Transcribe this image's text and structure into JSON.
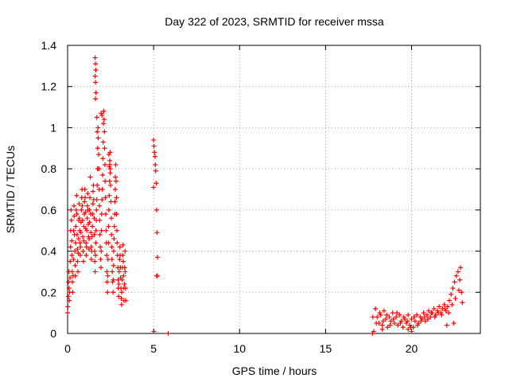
{
  "chart_data": {
    "type": "scatter",
    "title": "Day 322 of 2023, SRMTID for receiver mssa",
    "xlabel": "GPS time / hours",
    "ylabel": "SRMTID / TECUs",
    "xlim": [
      0,
      24
    ],
    "ylim": [
      0,
      1.4
    ],
    "xticks": [
      0,
      5,
      10,
      15,
      20
    ],
    "yticks": [
      0,
      0.2,
      0.4,
      0.6,
      0.8,
      1,
      1.2,
      1.4
    ],
    "xtick_labels": [
      "0",
      "5",
      "10",
      "15",
      "20"
    ],
    "ytick_labels": [
      "0",
      "0.2",
      "0.4",
      "0.6",
      "0.8",
      "1",
      "1.2",
      "1.4"
    ],
    "grid": true,
    "marker": "+",
    "color": "#ff0000",
    "series": [
      {
        "name": "mssa",
        "points": [
          [
            0.0,
            0.1
          ],
          [
            0.02,
            0.13
          ],
          [
            0.04,
            0.18
          ],
          [
            0.05,
            0.25
          ],
          [
            0.07,
            0.3
          ],
          [
            0.08,
            0.22
          ],
          [
            0.1,
            0.16
          ],
          [
            0.12,
            0.2
          ],
          [
            0.14,
            0.27
          ],
          [
            0.15,
            0.35
          ],
          [
            0.17,
            0.42
          ],
          [
            0.18,
            0.5
          ],
          [
            0.2,
            0.6
          ],
          [
            0.22,
            0.55
          ],
          [
            0.24,
            0.45
          ],
          [
            0.25,
            0.38
          ],
          [
            0.27,
            0.3
          ],
          [
            0.28,
            0.25
          ],
          [
            0.3,
            0.2
          ],
          [
            0.32,
            0.28
          ],
          [
            0.34,
            0.36
          ],
          [
            0.35,
            0.5
          ],
          [
            0.37,
            0.62
          ],
          [
            0.38,
            0.57
          ],
          [
            0.4,
            0.48
          ],
          [
            0.42,
            0.4
          ],
          [
            0.44,
            0.33
          ],
          [
            0.45,
            0.28
          ],
          [
            0.47,
            0.44
          ],
          [
            0.48,
            0.52
          ],
          [
            0.5,
            0.6
          ],
          [
            0.52,
            0.67
          ],
          [
            0.54,
            0.58
          ],
          [
            0.55,
            0.48
          ],
          [
            0.57,
            0.41
          ],
          [
            0.58,
            0.35
          ],
          [
            0.6,
            0.3
          ],
          [
            0.62,
            0.39
          ],
          [
            0.64,
            0.46
          ],
          [
            0.65,
            0.55
          ],
          [
            0.67,
            0.63
          ],
          [
            0.68,
            0.56
          ],
          [
            0.7,
            0.5
          ],
          [
            0.72,
            0.44
          ],
          [
            0.74,
            0.38
          ],
          [
            0.75,
            0.42
          ],
          [
            0.77,
            0.49
          ],
          [
            0.78,
            0.54
          ],
          [
            0.8,
            0.6
          ],
          [
            0.82,
            0.66
          ],
          [
            0.84,
            0.7
          ],
          [
            0.85,
            0.62
          ],
          [
            0.87,
            0.55
          ],
          [
            0.88,
            0.47
          ],
          [
            0.9,
            0.4
          ],
          [
            0.92,
            0.35
          ],
          [
            0.94,
            0.45
          ],
          [
            0.95,
            0.52
          ],
          [
            0.97,
            0.58
          ],
          [
            0.98,
            0.64
          ],
          [
            1.0,
            0.7
          ],
          [
            1.02,
            0.66
          ],
          [
            1.04,
            0.59
          ],
          [
            1.05,
            0.51
          ],
          [
            1.07,
            0.44
          ],
          [
            1.08,
            0.38
          ],
          [
            1.1,
            0.42
          ],
          [
            1.12,
            0.5
          ],
          [
            1.14,
            0.56
          ],
          [
            1.15,
            0.62
          ],
          [
            1.17,
            0.68
          ],
          [
            1.18,
            0.6
          ],
          [
            1.2,
            0.53
          ],
          [
            1.22,
            0.47
          ],
          [
            1.24,
            0.41
          ],
          [
            1.25,
            0.46
          ],
          [
            1.27,
            0.54
          ],
          [
            1.28,
            0.6
          ],
          [
            1.3,
            0.66
          ],
          [
            1.32,
            0.76
          ],
          [
            1.34,
            0.58
          ],
          [
            1.35,
            0.49
          ],
          [
            1.37,
            0.42
          ],
          [
            1.38,
            0.36
          ],
          [
            1.4,
            0.4
          ],
          [
            1.42,
            0.47
          ],
          [
            1.44,
            0.52
          ],
          [
            1.45,
            0.58
          ],
          [
            1.47,
            0.63
          ],
          [
            1.48,
            0.69
          ],
          [
            1.5,
            0.72
          ],
          [
            1.52,
            0.65
          ],
          [
            1.54,
            0.56
          ],
          [
            1.55,
            0.48
          ],
          [
            1.57,
            0.4
          ],
          [
            1.58,
            0.35
          ],
          [
            1.6,
            0.3
          ],
          [
            1.62,
            0.38
          ],
          [
            1.64,
            0.44
          ],
          [
            1.65,
            0.5
          ],
          [
            1.67,
            0.55
          ],
          [
            1.68,
            0.6
          ],
          [
            1.7,
            0.65
          ],
          [
            1.72,
            0.72
          ],
          [
            1.74,
            0.8
          ],
          [
            1.75,
            0.9
          ],
          [
            1.77,
            1.0
          ],
          [
            1.78,
            0.95
          ],
          [
            1.8,
            0.87
          ],
          [
            1.82,
            0.8
          ],
          [
            1.84,
            0.7
          ],
          [
            1.85,
            0.62
          ],
          [
            1.87,
            0.55
          ],
          [
            1.88,
            0.48
          ],
          [
            1.9,
            0.42
          ],
          [
            1.92,
            0.36
          ],
          [
            1.94,
            0.32
          ],
          [
            1.95,
            0.4
          ],
          [
            1.97,
            0.5
          ],
          [
            1.98,
            0.58
          ],
          [
            2.0,
            0.65
          ],
          [
            2.02,
            0.7
          ],
          [
            2.04,
            0.77
          ],
          [
            2.05,
            0.85
          ],
          [
            2.07,
            0.93
          ],
          [
            2.08,
            1.02
          ],
          [
            2.1,
            1.08
          ],
          [
            2.12,
            1.04
          ],
          [
            2.14,
            0.98
          ],
          [
            2.15,
            0.9
          ],
          [
            2.17,
            0.82
          ],
          [
            2.18,
            0.74
          ],
          [
            2.2,
            0.66
          ],
          [
            2.22,
            0.58
          ],
          [
            2.24,
            0.5
          ],
          [
            2.25,
            0.44
          ],
          [
            2.27,
            0.38
          ],
          [
            2.28,
            0.3
          ],
          [
            2.3,
            0.25
          ],
          [
            2.32,
            0.2
          ],
          [
            2.34,
            0.28
          ],
          [
            2.35,
            0.36
          ],
          [
            2.37,
            0.44
          ],
          [
            2.38,
            0.52
          ],
          [
            2.4,
            0.6
          ],
          [
            2.42,
            0.67
          ],
          [
            2.44,
            0.74
          ],
          [
            2.45,
            0.82
          ],
          [
            2.47,
            0.88
          ],
          [
            2.48,
            0.8
          ],
          [
            2.5,
            0.72
          ],
          [
            2.52,
            0.64
          ],
          [
            2.54,
            0.56
          ],
          [
            2.55,
            0.48
          ],
          [
            2.57,
            0.42
          ],
          [
            2.58,
            0.36
          ],
          [
            2.6,
            0.3
          ],
          [
            2.62,
            0.25
          ],
          [
            2.64,
            0.2
          ],
          [
            2.65,
            0.26
          ],
          [
            2.67,
            0.33
          ],
          [
            2.68,
            0.4
          ],
          [
            2.7,
            0.46
          ],
          [
            2.72,
            0.52
          ],
          [
            2.74,
            0.58
          ],
          [
            2.75,
            0.64
          ],
          [
            2.77,
            0.7
          ],
          [
            2.78,
            0.76
          ],
          [
            2.8,
            0.82
          ],
          [
            2.82,
            0.74
          ],
          [
            2.84,
            0.66
          ],
          [
            2.85,
            0.58
          ],
          [
            2.87,
            0.5
          ],
          [
            2.88,
            0.44
          ],
          [
            2.9,
            0.38
          ],
          [
            2.92,
            0.32
          ],
          [
            2.94,
            0.26
          ],
          [
            2.95,
            0.22
          ],
          [
            2.97,
            0.18
          ],
          [
            2.98,
            0.24
          ],
          [
            3.0,
            0.3
          ],
          [
            3.02,
            0.36
          ],
          [
            3.04,
            0.42
          ],
          [
            3.05,
            0.38
          ],
          [
            3.07,
            0.32
          ],
          [
            3.08,
            0.27
          ],
          [
            3.1,
            0.22
          ],
          [
            3.12,
            0.17
          ],
          [
            3.14,
            0.14
          ],
          [
            3.15,
            0.2
          ],
          [
            3.17,
            0.26
          ],
          [
            3.18,
            0.32
          ],
          [
            3.2,
            0.38
          ],
          [
            3.22,
            0.43
          ],
          [
            3.24,
            0.35
          ],
          [
            3.25,
            0.28
          ],
          [
            3.27,
            0.22
          ],
          [
            3.28,
            0.16
          ],
          [
            3.3,
            0.24
          ],
          [
            3.32,
            0.32
          ],
          [
            3.34,
            0.4
          ],
          [
            3.35,
            0.3
          ],
          [
            3.37,
            0.22
          ],
          [
            3.38,
            0.16
          ],
          [
            1.6,
            1.34
          ],
          [
            1.62,
            1.31
          ],
          [
            1.64,
            1.28
          ],
          [
            1.6,
            1.25
          ],
          [
            1.62,
            1.22
          ],
          [
            1.65,
            1.17
          ],
          [
            1.62,
            1.14
          ],
          [
            1.7,
            1.05
          ],
          [
            1.72,
            0.98
          ],
          [
            1.95,
            1.07
          ],
          [
            2.0,
            1.06
          ],
          [
            2.4,
            0.87
          ],
          [
            2.45,
            0.84
          ],
          [
            2.42,
            0.81
          ],
          [
            2.48,
            0.78
          ],
          [
            5.0,
            0.94
          ],
          [
            5.02,
            0.91
          ],
          [
            5.05,
            0.88
          ],
          [
            5.08,
            0.86
          ],
          [
            5.1,
            0.82
          ],
          [
            5.12,
            0.79
          ],
          [
            5.0,
            0.71
          ],
          [
            5.15,
            0.73
          ],
          [
            5.18,
            0.6
          ],
          [
            5.2,
            0.49
          ],
          [
            5.22,
            0.37
          ],
          [
            5.18,
            0.28
          ],
          [
            5.22,
            0.28
          ],
          [
            5.02,
            0.01
          ],
          [
            5.85,
            0.0
          ],
          [
            17.72,
            0.0
          ],
          [
            17.8,
            0.01
          ],
          [
            17.9,
            0.12
          ],
          [
            18.0,
            0.08
          ],
          [
            18.1,
            0.05
          ],
          [
            18.2,
            0.09
          ],
          [
            18.3,
            0.04
          ],
          [
            18.4,
            0.11
          ],
          [
            18.5,
            0.07
          ],
          [
            18.6,
            0.03
          ],
          [
            18.7,
            0.08
          ],
          [
            18.8,
            0.06
          ],
          [
            18.9,
            0.1
          ],
          [
            19.0,
            0.05
          ],
          [
            19.1,
            0.08
          ],
          [
            19.2,
            0.04
          ],
          [
            19.3,
            0.09
          ],
          [
            19.4,
            0.06
          ],
          [
            19.5,
            0.03
          ],
          [
            19.6,
            0.07
          ],
          [
            19.7,
            0.05
          ],
          [
            19.8,
            0.09
          ],
          [
            19.9,
            0.04
          ],
          [
            20.0,
            0.07
          ],
          [
            20.1,
            0.03
          ],
          [
            20.2,
            0.06
          ],
          [
            20.3,
            0.09
          ],
          [
            20.4,
            0.05
          ],
          [
            20.5,
            0.08
          ],
          [
            20.6,
            0.07
          ],
          [
            20.7,
            0.1
          ],
          [
            20.8,
            0.06
          ],
          [
            20.9,
            0.09
          ],
          [
            21.0,
            0.11
          ],
          [
            21.1,
            0.08
          ],
          [
            21.2,
            0.1
          ],
          [
            21.3,
            0.12
          ],
          [
            21.4,
            0.09
          ],
          [
            21.5,
            0.11
          ],
          [
            21.6,
            0.13
          ],
          [
            21.7,
            0.1
          ],
          [
            21.8,
            0.12
          ],
          [
            21.9,
            0.14
          ],
          [
            22.0,
            0.11
          ],
          [
            22.1,
            0.13
          ],
          [
            22.2,
            0.16
          ],
          [
            22.3,
            0.19
          ],
          [
            22.4,
            0.22
          ],
          [
            22.5,
            0.25
          ],
          [
            22.6,
            0.28
          ],
          [
            22.7,
            0.3
          ],
          [
            22.8,
            0.26
          ],
          [
            22.85,
            0.32
          ],
          [
            22.9,
            0.2
          ],
          [
            22.95,
            0.15
          ],
          [
            17.75,
            0.08
          ],
          [
            17.95,
            0.05
          ],
          [
            18.15,
            0.1
          ],
          [
            18.35,
            0.06
          ],
          [
            18.55,
            0.09
          ],
          [
            18.75,
            0.04
          ],
          [
            18.95,
            0.07
          ],
          [
            19.15,
            0.1
          ],
          [
            19.35,
            0.05
          ],
          [
            19.55,
            0.08
          ],
          [
            19.75,
            0.06
          ],
          [
            19.95,
            0.03
          ],
          [
            20.15,
            0.08
          ],
          [
            20.35,
            0.04
          ],
          [
            20.55,
            0.06
          ],
          [
            20.75,
            0.08
          ],
          [
            20.95,
            0.07
          ],
          [
            21.15,
            0.1
          ],
          [
            21.35,
            0.08
          ],
          [
            21.55,
            0.1
          ],
          [
            21.75,
            0.09
          ],
          [
            21.95,
            0.12
          ],
          [
            22.15,
            0.1
          ],
          [
            22.35,
            0.14
          ],
          [
            22.55,
            0.17
          ],
          [
            22.75,
            0.21
          ],
          [
            20.0,
            0.01
          ],
          [
            19.8,
            0.02
          ],
          [
            18.3,
            0.02
          ],
          [
            22.45,
            0.05
          ],
          [
            22.05,
            0.04
          ]
        ]
      }
    ]
  }
}
